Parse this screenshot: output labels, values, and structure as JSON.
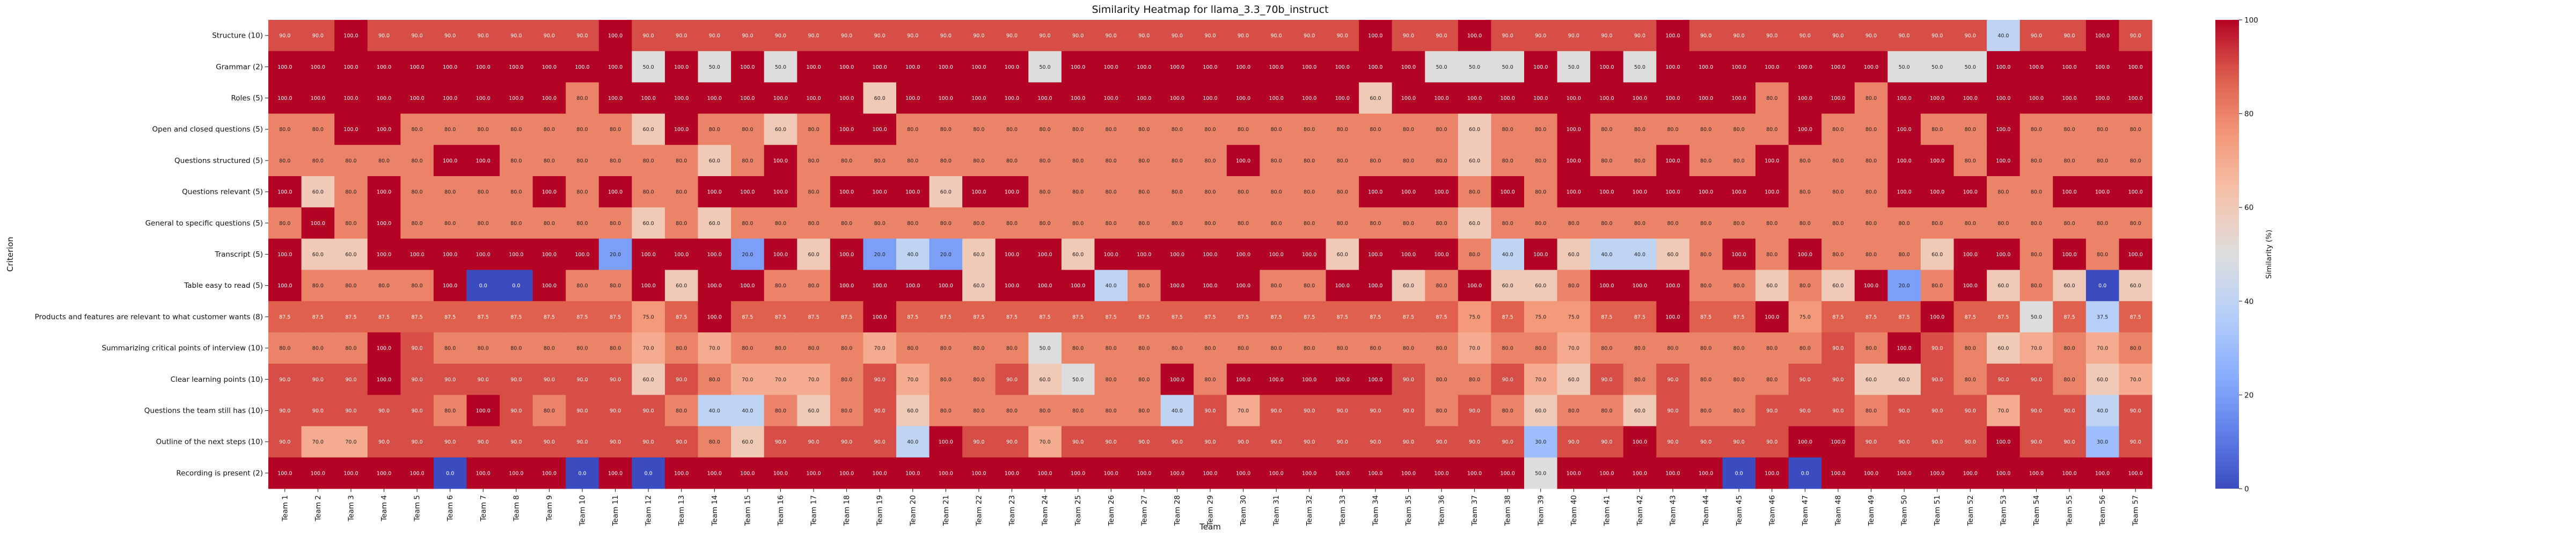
{
  "chart_data": {
    "type": "heatmap",
    "title": "Similarity Heatmap for llama_3.3_70b_instruct",
    "xlabel": "Team",
    "ylabel": "Criterion",
    "colorbar_label": "Similarity (%)",
    "colorbar_ticks": [
      0,
      20,
      40,
      60,
      80,
      100
    ],
    "colorbar_range": [
      0,
      100
    ],
    "colormap": "coolwarm",
    "x": [
      "Team 1",
      "Team 2",
      "Team 3",
      "Team 4",
      "Team 5",
      "Team 6",
      "Team 7",
      "Team 8",
      "Team 9",
      "Team 10",
      "Team 11",
      "Team 12",
      "Team 13",
      "Team 14",
      "Team 15",
      "Team 16",
      "Team 17",
      "Team 18",
      "Team 19",
      "Team 20",
      "Team 21",
      "Team 22",
      "Team 23",
      "Team 24",
      "Team 25",
      "Team 26",
      "Team 27",
      "Team 28",
      "Team 29",
      "Team 30",
      "Team 31",
      "Team 32",
      "Team 33",
      "Team 34",
      "Team 35",
      "Team 36",
      "Team 37",
      "Team 38",
      "Team 39",
      "Team 40",
      "Team 41",
      "Team 42",
      "Team 43",
      "Team 44",
      "Team 45",
      "Team 46",
      "Team 47",
      "Team 48",
      "Team 49",
      "Team 50",
      "Team 51",
      "Team 52",
      "Team 53",
      "Team 54",
      "Team 55",
      "Team 56",
      "Team 57"
    ],
    "y": [
      "Structure (10)",
      "Grammar (2)",
      "Roles (5)",
      "Open and closed questions (5)",
      "Questions structured (5)",
      "Questions relevant (5)",
      "General to specific questions (5)",
      "Transcript (5)",
      "Table easy to read (5)",
      "Products and features are relevant to what customer wants (8)",
      "Summarizing critical points of interview (10)",
      "Clear learning points (10)",
      "Questions the team still has (10)",
      "Outline of the next steps (10)",
      "Recording is present (2)"
    ],
    "values": [
      [
        90.0,
        90.0,
        100.0,
        90.0,
        90.0,
        90.0,
        90.0,
        90.0,
        90.0,
        90.0,
        100.0,
        90.0,
        90.0,
        90.0,
        90.0,
        90.0,
        90.0,
        90.0,
        90.0,
        90.0,
        90.0,
        90.0,
        90.0,
        90.0,
        90.0,
        90.0,
        90.0,
        90.0,
        90.0,
        90.0,
        90.0,
        90.0,
        90.0,
        100.0,
        90.0,
        90.0,
        100.0,
        90.0,
        90.0,
        90.0,
        90.0,
        90.0,
        100.0,
        90.0,
        90.0,
        90.0,
        90.0,
        90.0,
        90.0,
        90.0,
        90.0,
        90.0,
        40.0,
        90.0,
        90.0,
        100.0,
        90.0
      ],
      [
        100.0,
        100.0,
        100.0,
        100.0,
        100.0,
        100.0,
        100.0,
        100.0,
        100.0,
        100.0,
        100.0,
        50.0,
        100.0,
        50.0,
        100.0,
        50.0,
        100.0,
        100.0,
        100.0,
        100.0,
        100.0,
        100.0,
        100.0,
        50.0,
        100.0,
        100.0,
        100.0,
        100.0,
        100.0,
        100.0,
        100.0,
        100.0,
        100.0,
        100.0,
        100.0,
        50.0,
        50.0,
        50.0,
        100.0,
        50.0,
        100.0,
        50.0,
        100.0,
        100.0,
        100.0,
        100.0,
        100.0,
        100.0,
        100.0,
        50.0,
        50.0,
        50.0,
        100.0,
        100.0,
        100.0,
        100.0,
        100.0
      ],
      [
        100.0,
        100.0,
        100.0,
        100.0,
        100.0,
        100.0,
        100.0,
        100.0,
        100.0,
        80.0,
        100.0,
        100.0,
        100.0,
        100.0,
        100.0,
        100.0,
        100.0,
        100.0,
        60.0,
        100.0,
        100.0,
        100.0,
        100.0,
        100.0,
        100.0,
        100.0,
        100.0,
        100.0,
        100.0,
        100.0,
        100.0,
        100.0,
        100.0,
        60.0,
        100.0,
        100.0,
        100.0,
        100.0,
        100.0,
        100.0,
        100.0,
        100.0,
        100.0,
        100.0,
        100.0,
        80.0,
        100.0,
        100.0,
        80.0,
        100.0,
        100.0,
        100.0,
        100.0,
        100.0,
        100.0,
        100.0,
        100.0
      ],
      [
        80.0,
        80.0,
        100.0,
        100.0,
        80.0,
        80.0,
        80.0,
        80.0,
        80.0,
        80.0,
        80.0,
        60.0,
        100.0,
        80.0,
        80.0,
        60.0,
        80.0,
        100.0,
        100.0,
        80.0,
        80.0,
        80.0,
        80.0,
        80.0,
        80.0,
        80.0,
        80.0,
        80.0,
        80.0,
        80.0,
        80.0,
        80.0,
        80.0,
        80.0,
        80.0,
        80.0,
        60.0,
        80.0,
        80.0,
        100.0,
        80.0,
        80.0,
        80.0,
        80.0,
        80.0,
        80.0,
        100.0,
        80.0,
        80.0,
        100.0,
        80.0,
        80.0,
        100.0,
        80.0,
        80.0,
        80.0,
        80.0
      ],
      [
        80.0,
        80.0,
        80.0,
        80.0,
        80.0,
        100.0,
        100.0,
        80.0,
        80.0,
        80.0,
        80.0,
        80.0,
        80.0,
        60.0,
        80.0,
        100.0,
        80.0,
        80.0,
        80.0,
        80.0,
        80.0,
        80.0,
        80.0,
        80.0,
        80.0,
        80.0,
        80.0,
        80.0,
        80.0,
        100.0,
        80.0,
        80.0,
        80.0,
        80.0,
        80.0,
        80.0,
        60.0,
        80.0,
        80.0,
        100.0,
        80.0,
        80.0,
        100.0,
        80.0,
        80.0,
        100.0,
        80.0,
        80.0,
        80.0,
        100.0,
        100.0,
        80.0,
        100.0,
        80.0,
        80.0,
        80.0,
        80.0
      ],
      [
        100.0,
        60.0,
        80.0,
        100.0,
        80.0,
        80.0,
        80.0,
        80.0,
        100.0,
        80.0,
        100.0,
        80.0,
        80.0,
        100.0,
        100.0,
        100.0,
        80.0,
        100.0,
        100.0,
        100.0,
        60.0,
        100.0,
        100.0,
        80.0,
        80.0,
        80.0,
        80.0,
        80.0,
        80.0,
        80.0,
        80.0,
        80.0,
        80.0,
        100.0,
        100.0,
        100.0,
        80.0,
        100.0,
        80.0,
        100.0,
        100.0,
        100.0,
        100.0,
        100.0,
        100.0,
        100.0,
        80.0,
        80.0,
        80.0,
        100.0,
        100.0,
        100.0,
        80.0,
        80.0,
        100.0,
        100.0,
        100.0
      ],
      [
        80.0,
        100.0,
        80.0,
        100.0,
        80.0,
        80.0,
        80.0,
        80.0,
        80.0,
        80.0,
        80.0,
        60.0,
        80.0,
        60.0,
        80.0,
        80.0,
        80.0,
        80.0,
        80.0,
        80.0,
        80.0,
        80.0,
        80.0,
        80.0,
        80.0,
        80.0,
        80.0,
        80.0,
        80.0,
        80.0,
        80.0,
        80.0,
        80.0,
        80.0,
        80.0,
        80.0,
        60.0,
        80.0,
        80.0,
        80.0,
        80.0,
        80.0,
        80.0,
        80.0,
        80.0,
        80.0,
        80.0,
        80.0,
        80.0,
        80.0,
        80.0,
        80.0,
        80.0,
        80.0,
        80.0,
        80.0,
        80.0
      ],
      [
        100.0,
        60.0,
        60.0,
        100.0,
        100.0,
        100.0,
        100.0,
        100.0,
        100.0,
        100.0,
        20.0,
        100.0,
        100.0,
        100.0,
        20.0,
        100.0,
        60.0,
        100.0,
        20.0,
        40.0,
        20.0,
        60.0,
        100.0,
        100.0,
        60.0,
        100.0,
        100.0,
        100.0,
        100.0,
        100.0,
        100.0,
        100.0,
        60.0,
        100.0,
        100.0,
        100.0,
        80.0,
        40.0,
        100.0,
        60.0,
        40.0,
        40.0,
        60.0,
        80.0,
        100.0,
        80.0,
        100.0,
        80.0,
        80.0,
        80.0,
        60.0,
        100.0,
        100.0,
        80.0,
        100.0,
        80.0,
        100.0
      ],
      [
        100.0,
        80.0,
        80.0,
        80.0,
        80.0,
        100.0,
        0.0,
        0.0,
        100.0,
        80.0,
        80.0,
        100.0,
        60.0,
        100.0,
        100.0,
        80.0,
        80.0,
        100.0,
        100.0,
        100.0,
        100.0,
        60.0,
        100.0,
        100.0,
        100.0,
        40.0,
        80.0,
        100.0,
        100.0,
        100.0,
        80.0,
        80.0,
        100.0,
        100.0,
        60.0,
        80.0,
        100.0,
        60.0,
        60.0,
        80.0,
        100.0,
        100.0,
        100.0,
        80.0,
        80.0,
        60.0,
        80.0,
        60.0,
        100.0,
        20.0,
        80.0,
        100.0,
        60.0,
        80.0,
        60.0,
        0.0,
        60.0
      ],
      [
        87.5,
        87.5,
        87.5,
        87.5,
        87.5,
        87.5,
        87.5,
        87.5,
        87.5,
        87.5,
        87.5,
        75.0,
        87.5,
        100.0,
        87.5,
        87.5,
        87.5,
        87.5,
        100.0,
        87.5,
        87.5,
        87.5,
        87.5,
        87.5,
        87.5,
        87.5,
        87.5,
        87.5,
        87.5,
        87.5,
        87.5,
        87.5,
        87.5,
        87.5,
        87.5,
        87.5,
        75.0,
        87.5,
        75.0,
        75.0,
        87.5,
        87.5,
        100.0,
        87.5,
        87.5,
        100.0,
        75.0,
        87.5,
        87.5,
        87.5,
        100.0,
        87.5,
        87.5,
        50.0,
        87.5,
        37.5,
        87.5
      ],
      [
        80.0,
        80.0,
        80.0,
        100.0,
        90.0,
        80.0,
        80.0,
        80.0,
        80.0,
        80.0,
        80.0,
        70.0,
        80.0,
        70.0,
        80.0,
        80.0,
        80.0,
        80.0,
        70.0,
        80.0,
        80.0,
        80.0,
        80.0,
        50.0,
        80.0,
        80.0,
        80.0,
        80.0,
        80.0,
        80.0,
        80.0,
        80.0,
        80.0,
        80.0,
        80.0,
        80.0,
        70.0,
        80.0,
        80.0,
        70.0,
        80.0,
        80.0,
        80.0,
        80.0,
        80.0,
        80.0,
        80.0,
        90.0,
        80.0,
        100.0,
        90.0,
        80.0,
        60.0,
        70.0,
        80.0,
        70.0,
        80.0
      ],
      [
        90.0,
        90.0,
        90.0,
        100.0,
        90.0,
        90.0,
        90.0,
        90.0,
        90.0,
        90.0,
        90.0,
        60.0,
        90.0,
        80.0,
        70.0,
        70.0,
        70.0,
        80.0,
        90.0,
        70.0,
        80.0,
        80.0,
        90.0,
        60.0,
        50.0,
        80.0,
        80.0,
        100.0,
        80.0,
        100.0,
        100.0,
        100.0,
        100.0,
        100.0,
        90.0,
        80.0,
        80.0,
        90.0,
        70.0,
        60.0,
        90.0,
        80.0,
        90.0,
        80.0,
        80.0,
        80.0,
        90.0,
        90.0,
        60.0,
        60.0,
        90.0,
        80.0,
        90.0,
        90.0,
        80.0,
        60.0,
        70.0
      ],
      [
        90.0,
        90.0,
        90.0,
        90.0,
        90.0,
        80.0,
        100.0,
        90.0,
        80.0,
        90.0,
        90.0,
        90.0,
        80.0,
        40.0,
        40.0,
        80.0,
        60.0,
        80.0,
        90.0,
        60.0,
        80.0,
        80.0,
        80.0,
        80.0,
        80.0,
        80.0,
        80.0,
        40.0,
        90.0,
        70.0,
        90.0,
        90.0,
        90.0,
        90.0,
        90.0,
        80.0,
        90.0,
        80.0,
        60.0,
        80.0,
        80.0,
        60.0,
        90.0,
        80.0,
        80.0,
        90.0,
        90.0,
        90.0,
        80.0,
        90.0,
        90.0,
        90.0,
        70.0,
        90.0,
        90.0,
        40.0,
        90.0
      ],
      [
        90.0,
        70.0,
        70.0,
        90.0,
        90.0,
        90.0,
        90.0,
        90.0,
        90.0,
        90.0,
        90.0,
        90.0,
        90.0,
        80.0,
        60.0,
        90.0,
        90.0,
        90.0,
        90.0,
        40.0,
        100.0,
        90.0,
        90.0,
        70.0,
        90.0,
        90.0,
        90.0,
        90.0,
        90.0,
        90.0,
        90.0,
        90.0,
        90.0,
        90.0,
        90.0,
        90.0,
        90.0,
        90.0,
        30.0,
        90.0,
        90.0,
        100.0,
        90.0,
        90.0,
        90.0,
        90.0,
        100.0,
        100.0,
        90.0,
        90.0,
        90.0,
        90.0,
        100.0,
        90.0,
        90.0,
        30.0,
        90.0
      ],
      [
        100.0,
        100.0,
        100.0,
        100.0,
        100.0,
        0.0,
        100.0,
        100.0,
        100.0,
        0.0,
        100.0,
        0.0,
        100.0,
        100.0,
        100.0,
        100.0,
        100.0,
        100.0,
        100.0,
        100.0,
        100.0,
        100.0,
        100.0,
        100.0,
        100.0,
        100.0,
        100.0,
        100.0,
        100.0,
        100.0,
        100.0,
        100.0,
        100.0,
        100.0,
        100.0,
        100.0,
        100.0,
        100.0,
        50.0,
        100.0,
        100.0,
        100.0,
        100.0,
        100.0,
        0.0,
        100.0,
        0.0,
        100.0,
        100.0,
        100.0,
        100.0,
        100.0,
        100.0,
        100.0,
        100.0,
        100.0,
        100.0
      ]
    ]
  }
}
